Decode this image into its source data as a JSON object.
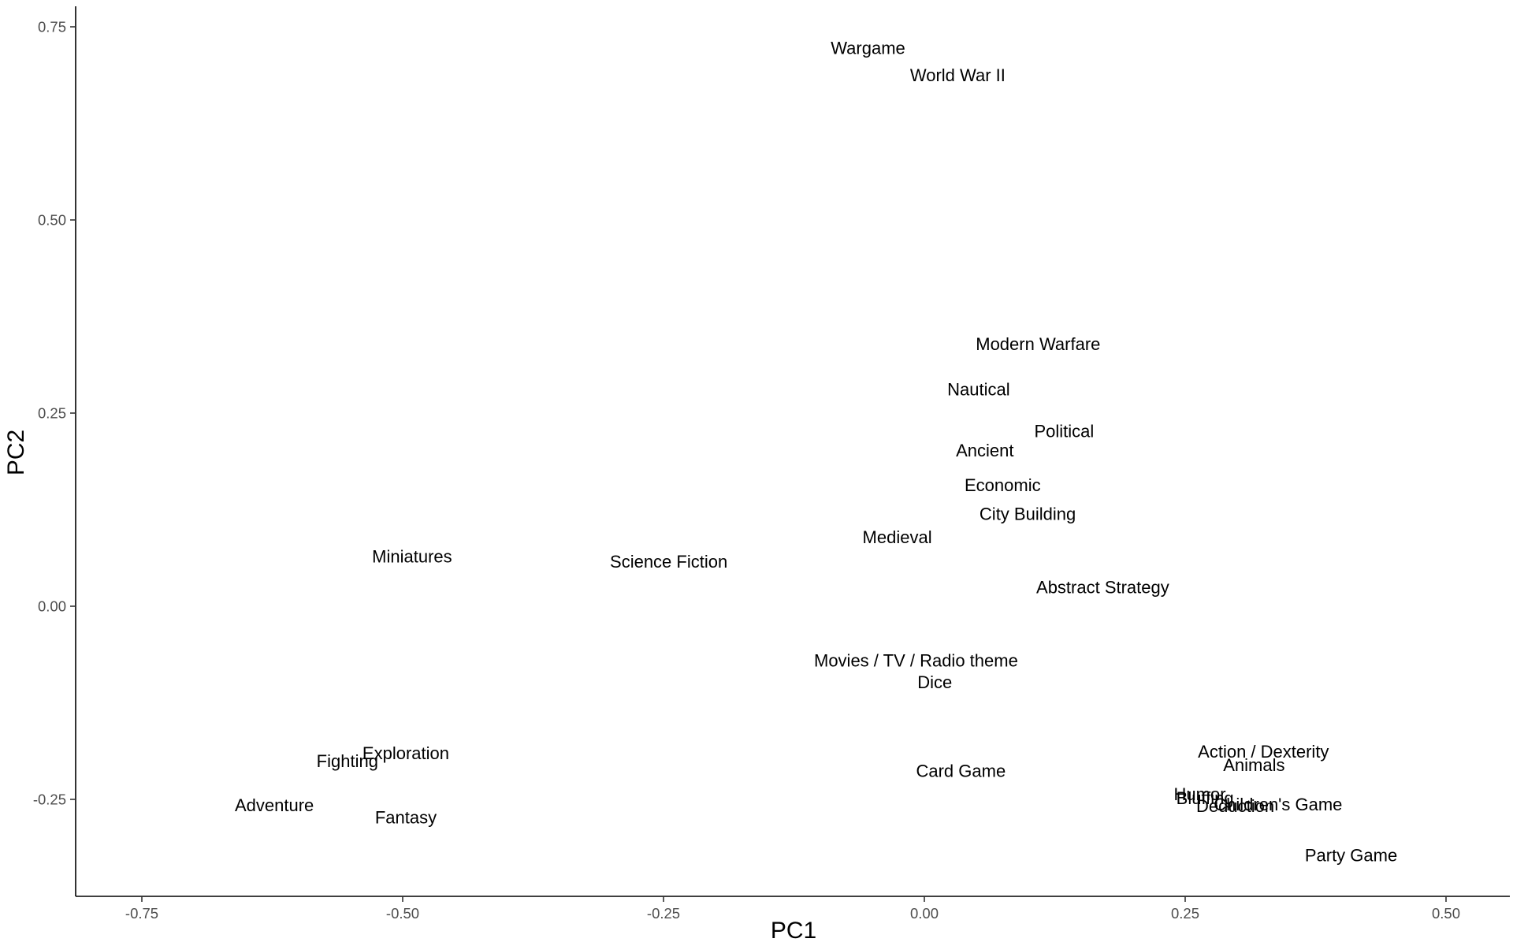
{
  "chart_data": {
    "type": "scatter",
    "title": "",
    "xlabel": "PC1",
    "ylabel": "PC2",
    "xlim": [
      -0.815,
      1.52
    ],
    "ylim": [
      -0.375,
      0.775
    ],
    "grid": false,
    "x_ticks": [
      {
        "value": -0.75,
        "label": "-0.75"
      },
      {
        "value": -0.5,
        "label": "-0.50"
      },
      {
        "value": -0.25,
        "label": "-0.25"
      },
      {
        "value": 0,
        "label": "0.00"
      },
      {
        "value": 0.25,
        "label": "0.25"
      },
      {
        "value": 0.5,
        "label": "0.50"
      }
    ],
    "y_ticks": [
      {
        "value": -0.25,
        "label": "-0.25"
      },
      {
        "value": 0,
        "label": "0.00"
      },
      {
        "value": 0.25,
        "label": "0.25"
      },
      {
        "value": 0.5,
        "label": "0.50"
      },
      {
        "value": 0.75,
        "label": "0.75"
      }
    ],
    "points": [
      {
        "label": "Wargame",
        "x": -0.054,
        "y": 0.723
      },
      {
        "label": "World War II",
        "x": 0.032,
        "y": 0.688
      },
      {
        "label": "Modern Warfare",
        "x": 0.109,
        "y": 0.34
      },
      {
        "label": "Nautical",
        "x": 0.052,
        "y": 0.281
      },
      {
        "label": "Political",
        "x": 0.134,
        "y": 0.227
      },
      {
        "label": "Ancient",
        "x": 0.058,
        "y": 0.202
      },
      {
        "label": "Economic",
        "x": 0.075,
        "y": 0.157
      },
      {
        "label": "City Building",
        "x": 0.099,
        "y": 0.12
      },
      {
        "label": "Medieval",
        "x": -0.026,
        "y": 0.09
      },
      {
        "label": "Miniatures",
        "x": -0.491,
        "y": 0.065
      },
      {
        "label": "Science Fiction",
        "x": -0.245,
        "y": 0.058
      },
      {
        "label": "Abstract Strategy",
        "x": 0.171,
        "y": 0.025
      },
      {
        "label": "Movies / TV / Radio theme",
        "x": -0.008,
        "y": -0.07
      },
      {
        "label": "Dice",
        "x": 0.01,
        "y": -0.098
      },
      {
        "label": "Exploration",
        "x": -0.497,
        "y": -0.19
      },
      {
        "label": "Fighting",
        "x": -0.553,
        "y": -0.2
      },
      {
        "label": "Card Game",
        "x": 0.035,
        "y": -0.213
      },
      {
        "label": "Adventure",
        "x": -0.623,
        "y": -0.257
      },
      {
        "label": "Fantasy",
        "x": -0.497,
        "y": -0.273
      },
      {
        "label": "Action / Dexterity",
        "x": 0.325,
        "y": -0.188
      },
      {
        "label": "Animals",
        "x": 0.316,
        "y": -0.205
      },
      {
        "label": "Humor",
        "x": 0.264,
        "y": -0.243
      },
      {
        "label": "Bluffing",
        "x": 0.269,
        "y": -0.248
      },
      {
        "label": "Children's Game",
        "x": 0.339,
        "y": -0.256
      },
      {
        "label": "Deduction",
        "x": 0.298,
        "y": -0.258
      },
      {
        "label": "Party Game",
        "x": 0.409,
        "y": -0.322
      }
    ]
  }
}
